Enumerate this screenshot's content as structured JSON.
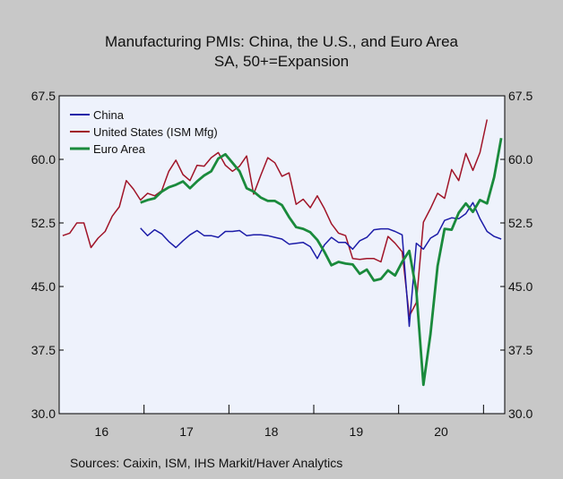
{
  "chart_data": {
    "type": "line",
    "title": "Manufacturing PMIs: China, the U.S., and Euro Area",
    "subtitle": "SA, 50+=Expansion",
    "source": "Sources:    Caixin, ISM, IHS Markit/Haver Analytics",
    "ylim": [
      30.0,
      67.5
    ],
    "y_ticks": [
      "30.0",
      "37.5",
      "45.0",
      "52.5",
      "60.0",
      "67.5"
    ],
    "x_start_year": 2016,
    "x_end_year": 2021,
    "x_tick_labels": [
      "16",
      "17",
      "18",
      "19",
      "20"
    ],
    "legend_position": "top-left",
    "plot_background": "#eef2fc",
    "series": [
      {
        "name": "China",
        "color": "#1c1ca8",
        "start": "2016-12",
        "values": [
          51.9,
          51.0,
          51.7,
          51.2,
          50.3,
          49.6,
          50.4,
          51.1,
          51.6,
          51.0,
          51.0,
          50.8,
          51.5,
          51.5,
          51.6,
          51.0,
          51.1,
          51.1,
          51.0,
          50.8,
          50.6,
          50.0,
          50.1,
          50.2,
          49.7,
          48.3,
          49.9,
          50.8,
          50.2,
          50.2,
          49.4,
          50.4,
          50.8,
          51.7,
          51.8,
          51.8,
          51.5,
          51.1,
          40.3,
          50.1,
          49.4,
          50.7,
          51.2,
          52.8,
          53.1,
          53.0,
          53.6,
          54.9,
          53.0,
          51.5,
          50.9,
          50.6
        ]
      },
      {
        "name": "United States (ISM Mfg)",
        "color": "#a01428",
        "start": "2016-01",
        "values": [
          51.0,
          51.3,
          52.5,
          52.5,
          49.6,
          50.7,
          51.5,
          53.3,
          54.4,
          57.5,
          56.5,
          55.2,
          56.0,
          55.7,
          56.3,
          58.6,
          59.9,
          58.2,
          57.5,
          59.3,
          59.2,
          60.2,
          60.8,
          59.3,
          58.6,
          59.2,
          60.4,
          55.9,
          58.1,
          60.2,
          59.6,
          58.0,
          58.4,
          54.7,
          55.3,
          54.3,
          55.7,
          54.2,
          52.4,
          51.3,
          51.0,
          48.3,
          48.2,
          48.3,
          48.3,
          47.9,
          50.9,
          50.1,
          49.1,
          41.5,
          43.1,
          52.6,
          54.2,
          56.0,
          55.4,
          58.8,
          57.5,
          60.7,
          58.7,
          60.8,
          64.7
        ]
      },
      {
        "name": "Euro Area",
        "color": "#1a8a3c",
        "start": "2016-12",
        "values": [
          54.9,
          55.2,
          55.4,
          56.2,
          56.7,
          57.0,
          57.4,
          56.6,
          57.4,
          58.1,
          58.6,
          60.1,
          60.6,
          59.6,
          58.6,
          56.6,
          56.2,
          55.5,
          55.1,
          55.1,
          54.6,
          53.2,
          52.0,
          51.8,
          51.4,
          50.5,
          49.1,
          47.5,
          47.9,
          47.7,
          47.6,
          46.5,
          47.0,
          45.7,
          45.9,
          46.9,
          46.3,
          47.9,
          49.2,
          44.5,
          33.4,
          39.4,
          47.4,
          51.8,
          51.7,
          53.7,
          54.8,
          53.8,
          55.2,
          54.8,
          57.9,
          62.5
        ]
      }
    ]
  }
}
